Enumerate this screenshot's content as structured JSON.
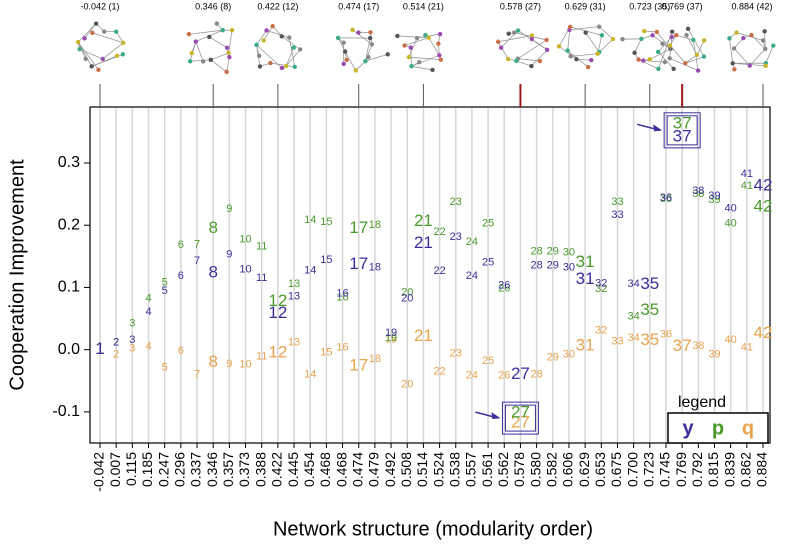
{
  "chart_data": {
    "type": "text-scatter",
    "y_label": "Cooperation Improvement",
    "x_label": "Network structure (modularity order)",
    "categories": [
      "-0.042",
      "0.007",
      "0.115",
      "0.185",
      "0.247",
      "0.296",
      "0.337",
      "0.346",
      "0.357",
      "0.373",
      "0.388",
      "0.422",
      "0.445",
      "0.454",
      "0.468",
      "0.468",
      "0.474",
      "0.479",
      "0.492",
      "0.508",
      "0.514",
      "0.524",
      "0.538",
      "0.557",
      "0.561",
      "0.562",
      "0.578",
      "0.580",
      "0.582",
      "0.606",
      "0.629",
      "0.653",
      "0.675",
      "0.700",
      "0.723",
      "0.745",
      "0.769",
      "0.792",
      "0.815",
      "0.839",
      "0.862",
      "0.884"
    ],
    "point_labels": [
      1,
      2,
      3,
      4,
      5,
      6,
      7,
      8,
      9,
      10,
      11,
      12,
      13,
      14,
      15,
      16,
      17,
      18,
      19,
      20,
      21,
      22,
      23,
      24,
      25,
      26,
      27,
      28,
      29,
      30,
      31,
      32,
      33,
      34,
      35,
      36,
      37,
      38,
      39,
      40,
      41,
      42
    ],
    "series": [
      {
        "name": "q",
        "color": "#e8a34c",
        "values": [
          0,
          -0.008,
          0.002,
          0.005,
          -0.029,
          -0.002,
          -0.04,
          -0.021,
          -0.023,
          -0.024,
          -0.011,
          -0.005,
          0.011,
          -0.04,
          -0.005,
          0.003,
          -0.026,
          -0.015,
          0.016,
          -0.056,
          0.021,
          -0.035,
          -0.006,
          -0.042,
          -0.018,
          -0.042,
          -0.118,
          -0.04,
          -0.013,
          -0.008,
          0.006,
          0.031,
          0.013,
          0.019,
          0.015,
          0.024,
          0.005,
          0.006,
          -0.008,
          0.015,
          0.003,
          0.026
        ]
      },
      {
        "name": "p",
        "color": "#4a9a2c",
        "values": [
          0,
          0.011,
          0.042,
          0.082,
          0.108,
          0.168,
          0.169,
          0.195,
          0.226,
          0.177,
          0.166,
          0.077,
          0.105,
          0.208,
          0.205,
          0.084,
          0.195,
          0.2,
          0.019,
          0.092,
          0.206,
          0.189,
          0.237,
          0.173,
          0.203,
          0.098,
          -0.102,
          0.158,
          0.158,
          0.156,
          0.14,
          0.097,
          0.237,
          0.053,
          0.063,
          0.242,
          0.363,
          0.25,
          0.24,
          0.203,
          0.263,
          0.229
        ]
      },
      {
        "name": "y",
        "color": "#3b2f9a",
        "values": [
          0,
          0.011,
          0.015,
          0.06,
          0.094,
          0.118,
          0.142,
          0.123,
          0.153,
          0.129,
          0.115,
          0.058,
          0.085,
          0.127,
          0.144,
          0.09,
          0.137,
          0.132,
          0.027,
          0.082,
          0.171,
          0.126,
          0.181,
          0.118,
          0.14,
          0.103,
          -0.04,
          0.135,
          0.135,
          0.132,
          0.113,
          0.106,
          0.216,
          0.105,
          0.105,
          0.244,
          0.342,
          0.255,
          0.247,
          0.227,
          0.282,
          0.263
        ]
      }
    ],
    "ylim": [
      -0.15,
      0.39
    ],
    "yticks": [
      -0.1,
      0.0,
      0.1,
      0.2,
      0.3
    ],
    "ytick_labels": [
      "-0.1",
      "0.0",
      "0.1",
      "0.2",
      "0.3"
    ],
    "grid": true,
    "legend_title": "legend",
    "legend_position": "lower right",
    "highlighted": [
      1,
      8,
      12,
      17,
      21,
      27,
      31,
      35,
      37,
      42
    ],
    "boxed": [
      27,
      37
    ],
    "thumbnail_labels": [
      "-0.042 (1)",
      "0.346 (8)",
      "0.422 (12)",
      "0.474 (17)",
      "0.514 (21)",
      "0.578 (27)",
      "0.629 (31)",
      "0.723 (35)",
      "0.769 (37)",
      "0.884 (42)"
    ]
  }
}
